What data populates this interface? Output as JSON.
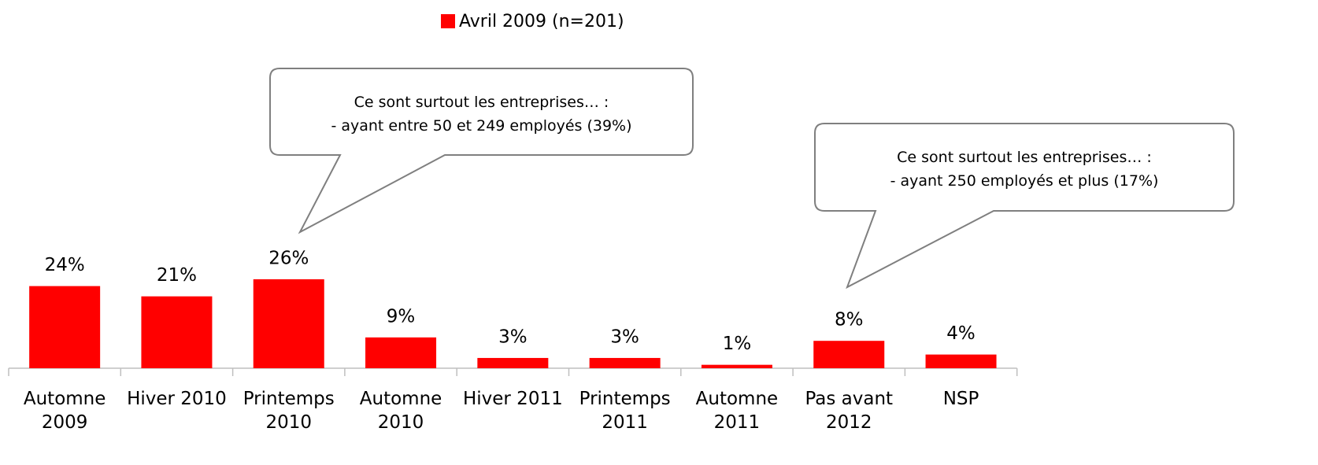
{
  "chart_data": {
    "type": "bar",
    "categories": [
      "Automne 2009",
      "Hiver 2010",
      "Printemps 2010",
      "Automne 2010",
      "Hiver 2011",
      "Printemps 2011",
      "Automne 2011",
      "Pas avant 2012",
      "NSP"
    ],
    "series": [
      {
        "name": "Avril 2009 (n=201)",
        "color": "#ff0000",
        "values": [
          24,
          21,
          26,
          9,
          3,
          3,
          1,
          8,
          4
        ],
        "value_labels": [
          "24%",
          "21%",
          "26%",
          "9%",
          "3%",
          "3%",
          "1%",
          "8%",
          "4%"
        ]
      }
    ],
    "legend": "top",
    "annotations": [
      {
        "lines": [
          "Ce sont surtout les entreprises… :",
          "- ayant entre 50 et 249 employés (39%)"
        ]
      },
      {
        "lines": [
          "Ce sont surtout les entreprises… :",
          "- ayant 250 employés et plus (17%)"
        ]
      }
    ]
  }
}
